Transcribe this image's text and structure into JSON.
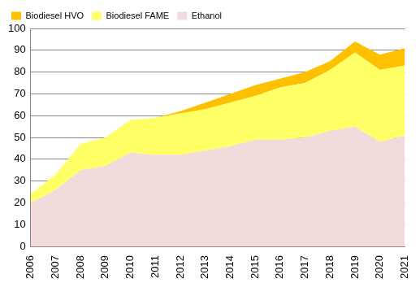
{
  "chart_data": {
    "type": "area",
    "categories": [
      "2006",
      "2007",
      "2008",
      "2009",
      "2010",
      "2011",
      "2012",
      "2013",
      "2014",
      "2015",
      "2016",
      "2017",
      "2018",
      "2019",
      "2020",
      "2021"
    ],
    "series": [
      {
        "name": "Ethanol",
        "color": "#f2dcdb",
        "values": [
          20,
          26,
          35,
          37,
          43,
          42,
          42,
          44,
          46,
          49,
          49,
          50,
          53,
          55,
          48,
          51
        ]
      },
      {
        "name": "Biodiesel FAME",
        "color": "#ffff66",
        "values": [
          4,
          7,
          12,
          13,
          15,
          17,
          19,
          19,
          20,
          20,
          24,
          25,
          28,
          34,
          33,
          32
        ]
      },
      {
        "name": "Biodiesel HVO",
        "color": "#ffc000",
        "values": [
          0,
          0,
          0,
          0,
          0,
          0,
          1,
          3,
          4,
          5,
          4,
          5,
          4,
          5,
          7,
          8
        ]
      }
    ],
    "stacked": true,
    "ylim": [
      0,
      100
    ],
    "yticks": [
      0,
      10,
      20,
      30,
      40,
      50,
      60,
      70,
      80,
      90,
      100
    ],
    "grid": true,
    "legend": "upper left"
  }
}
